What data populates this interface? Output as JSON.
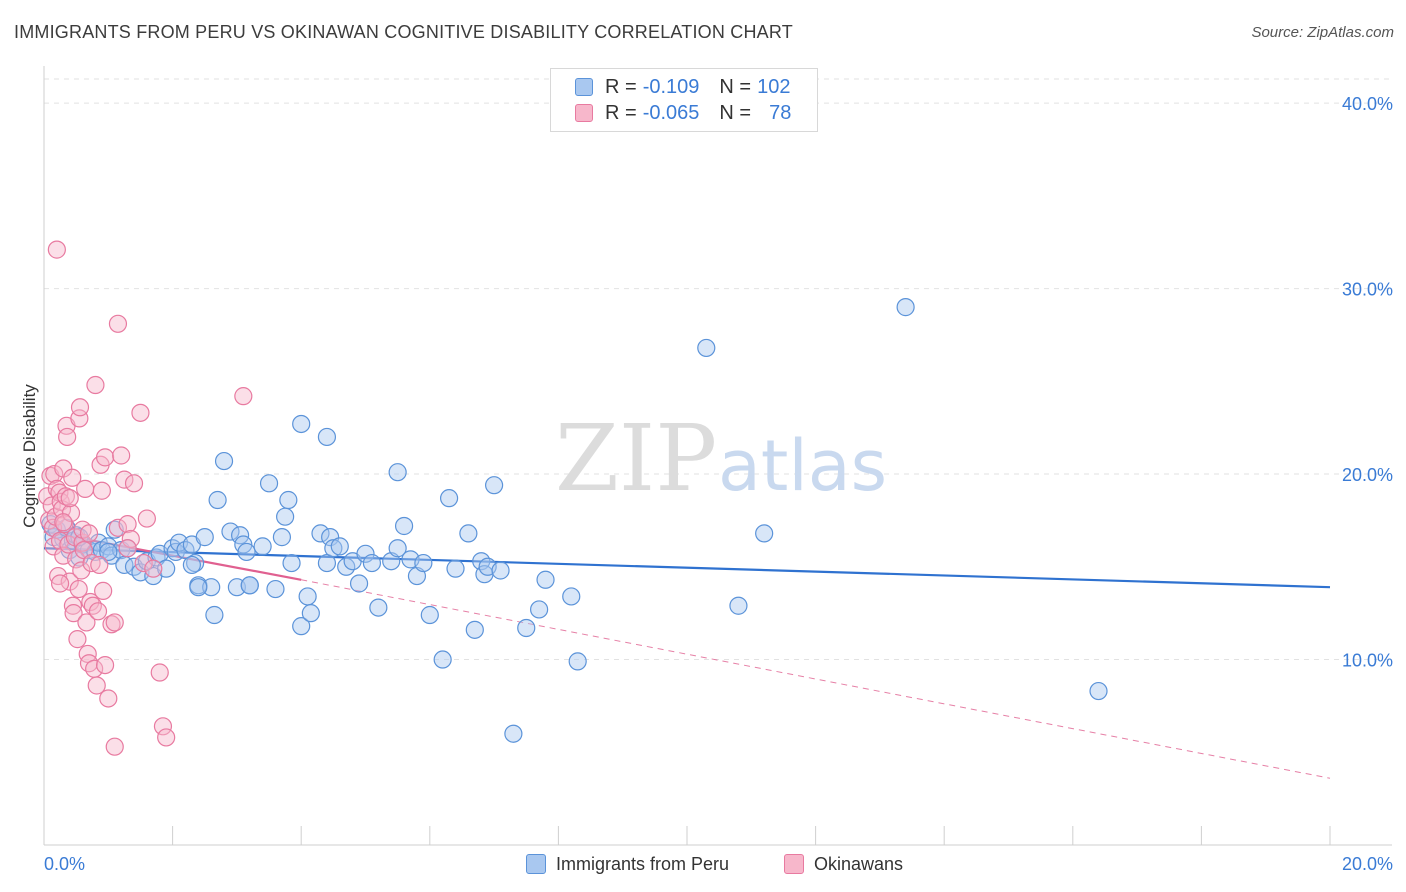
{
  "title": "IMMIGRANTS FROM PERU VS OKINAWAN COGNITIVE DISABILITY CORRELATION CHART",
  "source": "Source: ZipAtlas.com",
  "watermark": {
    "zip": "ZIP",
    "atlas": "atlas"
  },
  "colors": {
    "blue_fill": "#a9c8f0",
    "blue_stroke": "#5b93d9",
    "blue_line": "#2f72d0",
    "pink_fill": "#f7b7cb",
    "pink_stroke": "#e87aa0",
    "pink_line": "#e06090",
    "tick": "#3a7bd5"
  },
  "legend": {
    "rows": [
      {
        "r_label": "R = ",
        "r_value": "-0.109",
        "n_label": "N = ",
        "n_value": "102"
      },
      {
        "r_label": "R = ",
        "r_value": "-0.065",
        "n_label": "N = ",
        "n_value": "78"
      }
    ]
  },
  "bottom_legend": [
    "Immigrants from Peru",
    "Okinawans"
  ],
  "chart_data": {
    "type": "scatter",
    "ylabel": "Cognitive Disability",
    "xlim": [
      0,
      20
    ],
    "ylim": [
      0,
      42
    ],
    "x_tick_labels": [
      "0.0%",
      "20.0%"
    ],
    "y_ticks": [
      10,
      20,
      30,
      40
    ],
    "y_tick_labels": [
      "10.0%",
      "20.0%",
      "30.0%",
      "40.0%"
    ],
    "grid": true,
    "legend_position": "top-center",
    "series": [
      {
        "name": "Immigrants from Peru",
        "r": -0.109,
        "n": 102,
        "trend": {
          "x": [
            0.0,
            20.0
          ],
          "y": [
            16.0,
            13.9
          ]
        },
        "points": [
          [
            0.1,
            17.3
          ],
          [
            0.15,
            16.6
          ],
          [
            0.2,
            17.0
          ],
          [
            0.3,
            16.5
          ],
          [
            0.35,
            17.1
          ],
          [
            0.4,
            15.9
          ],
          [
            0.45,
            16.4
          ],
          [
            0.5,
            16.7
          ],
          [
            0.55,
            15.5
          ],
          [
            0.6,
            16.2
          ],
          [
            0.7,
            15.9
          ],
          [
            0.8,
            15.8
          ],
          [
            0.85,
            16.3
          ],
          [
            0.9,
            15.9
          ],
          [
            1.0,
            16.1
          ],
          [
            1.05,
            15.6
          ],
          [
            1.1,
            17.0
          ],
          [
            1.2,
            15.9
          ],
          [
            1.25,
            15.1
          ],
          [
            1.3,
            16.0
          ],
          [
            1.4,
            15.0
          ],
          [
            1.5,
            14.7
          ],
          [
            1.6,
            15.3
          ],
          [
            1.7,
            14.5
          ],
          [
            1.75,
            15.5
          ],
          [
            1.8,
            15.7
          ],
          [
            1.9,
            14.9
          ],
          [
            2.0,
            16.0
          ],
          [
            2.05,
            15.8
          ],
          [
            2.1,
            16.3
          ],
          [
            2.2,
            15.9
          ],
          [
            2.3,
            16.2
          ],
          [
            2.35,
            15.2
          ],
          [
            2.4,
            14.0
          ],
          [
            2.5,
            16.6
          ],
          [
            2.6,
            13.9
          ],
          [
            2.65,
            12.4
          ],
          [
            2.7,
            18.6
          ],
          [
            2.8,
            20.7
          ],
          [
            2.9,
            16.9
          ],
          [
            3.0,
            13.9
          ],
          [
            3.05,
            16.7
          ],
          [
            3.1,
            16.2
          ],
          [
            3.15,
            15.8
          ],
          [
            3.2,
            14.0
          ],
          [
            3.4,
            16.1
          ],
          [
            3.5,
            19.5
          ],
          [
            3.6,
            13.8
          ],
          [
            3.7,
            16.6
          ],
          [
            3.75,
            17.7
          ],
          [
            3.8,
            18.6
          ],
          [
            3.85,
            15.2
          ],
          [
            4.0,
            11.8
          ],
          [
            4.1,
            13.4
          ],
          [
            4.15,
            12.5
          ],
          [
            4.3,
            16.8
          ],
          [
            4.4,
            15.2
          ],
          [
            4.45,
            16.6
          ],
          [
            4.5,
            16.0
          ],
          [
            4.6,
            16.1
          ],
          [
            4.7,
            15.0
          ],
          [
            4.8,
            15.3
          ],
          [
            4.9,
            14.1
          ],
          [
            5.0,
            15.7
          ],
          [
            5.1,
            15.2
          ],
          [
            5.2,
            12.8
          ],
          [
            5.4,
            15.3
          ],
          [
            5.5,
            16.0
          ],
          [
            5.6,
            17.2
          ],
          [
            5.7,
            15.4
          ],
          [
            5.8,
            14.5
          ],
          [
            5.9,
            15.2
          ],
          [
            6.0,
            12.4
          ],
          [
            6.2,
            10.0
          ],
          [
            6.3,
            18.7
          ],
          [
            6.4,
            14.9
          ],
          [
            6.6,
            16.8
          ],
          [
            6.7,
            11.6
          ],
          [
            6.8,
            15.3
          ],
          [
            6.85,
            14.6
          ],
          [
            6.9,
            15.0
          ],
          [
            7.0,
            19.4
          ],
          [
            7.1,
            14.8
          ],
          [
            7.3,
            6.0
          ],
          [
            7.5,
            11.7
          ],
          [
            7.7,
            12.7
          ],
          [
            7.8,
            14.3
          ],
          [
            8.2,
            13.4
          ],
          [
            8.3,
            9.9
          ],
          [
            10.3,
            26.8
          ],
          [
            10.8,
            12.9
          ],
          [
            11.2,
            16.8
          ],
          [
            13.4,
            29.0
          ],
          [
            16.4,
            8.3
          ],
          [
            2.4,
            13.9
          ],
          [
            4.0,
            22.7
          ],
          [
            4.4,
            22.0
          ],
          [
            5.5,
            20.1
          ],
          [
            3.2,
            14.0
          ],
          [
            2.3,
            15.1
          ],
          [
            1.0,
            15.8
          ],
          [
            0.55,
            16.6
          ]
        ]
      },
      {
        "name": "Okinawans",
        "r": -0.065,
        "n": 78,
        "trend": {
          "x": [
            0.0,
            4.0
          ],
          "y": [
            16.9,
            14.3
          ]
        },
        "trend_extended": {
          "x": [
            4.0,
            20.0
          ],
          "y": [
            14.3,
            3.6
          ]
        },
        "points": [
          [
            0.05,
            18.8
          ],
          [
            0.08,
            17.5
          ],
          [
            0.1,
            19.9
          ],
          [
            0.12,
            18.3
          ],
          [
            0.14,
            17.1
          ],
          [
            0.15,
            16.1
          ],
          [
            0.16,
            20.0
          ],
          [
            0.18,
            17.7
          ],
          [
            0.2,
            19.2
          ],
          [
            0.22,
            14.5
          ],
          [
            0.24,
            19.0
          ],
          [
            0.25,
            16.4
          ],
          [
            0.26,
            18.5
          ],
          [
            0.28,
            18.1
          ],
          [
            0.3,
            15.6
          ],
          [
            0.3,
            20.3
          ],
          [
            0.32,
            17.3
          ],
          [
            0.34,
            18.8
          ],
          [
            0.35,
            22.6
          ],
          [
            0.36,
            22.0
          ],
          [
            0.38,
            16.2
          ],
          [
            0.4,
            14.2
          ],
          [
            0.42,
            17.9
          ],
          [
            0.44,
            19.8
          ],
          [
            0.45,
            12.9
          ],
          [
            0.46,
            12.5
          ],
          [
            0.48,
            16.6
          ],
          [
            0.5,
            15.4
          ],
          [
            0.52,
            11.1
          ],
          [
            0.54,
            13.8
          ],
          [
            0.55,
            23.0
          ],
          [
            0.56,
            23.6
          ],
          [
            0.58,
            14.8
          ],
          [
            0.6,
            16.3
          ],
          [
            0.62,
            15.9
          ],
          [
            0.64,
            19.2
          ],
          [
            0.66,
            12.0
          ],
          [
            0.68,
            10.3
          ],
          [
            0.7,
            9.8
          ],
          [
            0.72,
            13.1
          ],
          [
            0.74,
            15.2
          ],
          [
            0.76,
            12.9
          ],
          [
            0.78,
            9.5
          ],
          [
            0.8,
            24.8
          ],
          [
            0.82,
            8.6
          ],
          [
            0.84,
            12.6
          ],
          [
            0.86,
            15.1
          ],
          [
            0.88,
            20.5
          ],
          [
            0.9,
            19.1
          ],
          [
            0.92,
            13.7
          ],
          [
            0.95,
            20.9
          ],
          [
            1.0,
            7.9
          ],
          [
            1.05,
            11.9
          ],
          [
            1.1,
            12.0
          ],
          [
            1.15,
            17.1
          ],
          [
            1.2,
            21.0
          ],
          [
            1.25,
            19.7
          ],
          [
            1.3,
            17.3
          ],
          [
            1.35,
            16.5
          ],
          [
            1.4,
            19.5
          ],
          [
            1.1,
            5.3
          ],
          [
            1.15,
            28.1
          ],
          [
            0.2,
            32.1
          ],
          [
            1.5,
            23.3
          ],
          [
            1.55,
            15.2
          ],
          [
            1.6,
            17.6
          ],
          [
            1.7,
            14.9
          ],
          [
            1.8,
            9.3
          ],
          [
            1.85,
            6.4
          ],
          [
            1.9,
            5.8
          ],
          [
            3.1,
            24.2
          ],
          [
            0.95,
            9.7
          ],
          [
            0.6,
            17.0
          ],
          [
            0.4,
            18.7
          ],
          [
            0.3,
            17.4
          ],
          [
            0.7,
            16.8
          ],
          [
            0.25,
            14.1
          ],
          [
            1.3,
            16.0
          ]
        ]
      }
    ]
  }
}
